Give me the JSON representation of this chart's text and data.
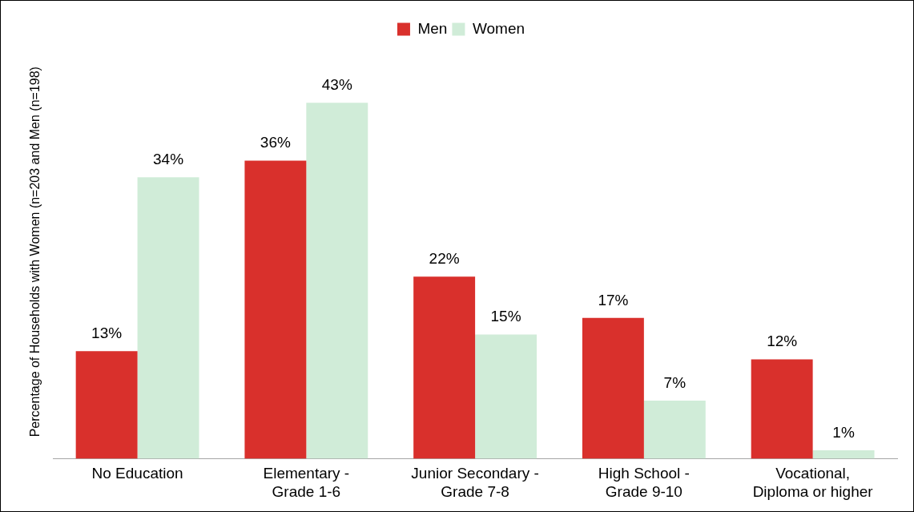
{
  "chart_data": {
    "type": "bar",
    "ylabel": "Percentage of Households with Women (n=203 and Men (n=198)",
    "categories": [
      "No Education",
      "Elementary - Grade 1-6",
      "Junior Secondary - Grade 7-8",
      "High School - Grade 9-10",
      "Vocational, Diploma or higher"
    ],
    "series": [
      {
        "name": "Men",
        "color": "#d9302c",
        "values": [
          13,
          36,
          22,
          17,
          12
        ],
        "value_labels": [
          "13%",
          "36%",
          "22%",
          "17%",
          "12%"
        ]
      },
      {
        "name": "Women",
        "color": "#d0ecd8",
        "values": [
          34,
          43,
          15,
          7,
          1
        ],
        "value_labels": [
          "34%",
          "43%",
          "15%",
          "7%",
          "1%"
        ]
      }
    ],
    "grid": false,
    "legend": "top"
  }
}
